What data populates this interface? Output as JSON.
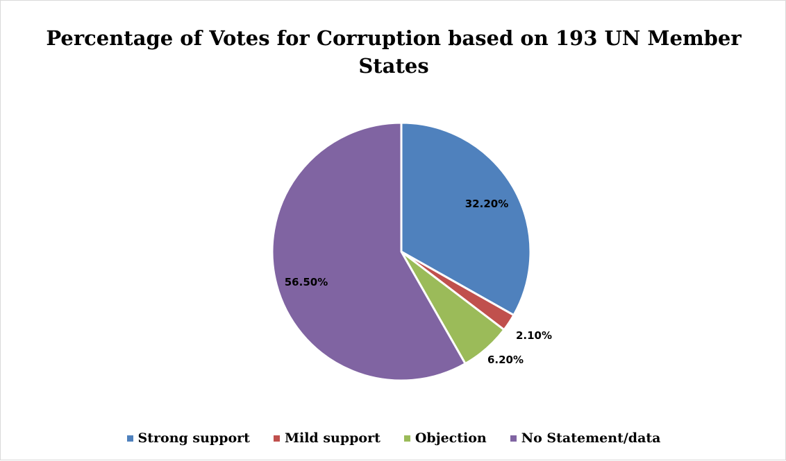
{
  "chart_data": {
    "type": "pie",
    "title_line1": "Percentage of Votes for Corruption based on 193 UN Member",
    "title_line2": "States",
    "categories": [
      "Strong support",
      "Mild support",
      "Objection",
      "No Statement/data"
    ],
    "values": [
      32.2,
      2.1,
      6.2,
      56.5
    ],
    "value_labels": [
      "32.20%",
      "2.10%",
      "6.20%",
      "56.50%"
    ],
    "colors": [
      "#4F81BD",
      "#C0504D",
      "#9BBB59",
      "#8064A2"
    ],
    "legend_position": "bottom",
    "start_angle": "12 o'clock",
    "direction": "clockwise"
  }
}
